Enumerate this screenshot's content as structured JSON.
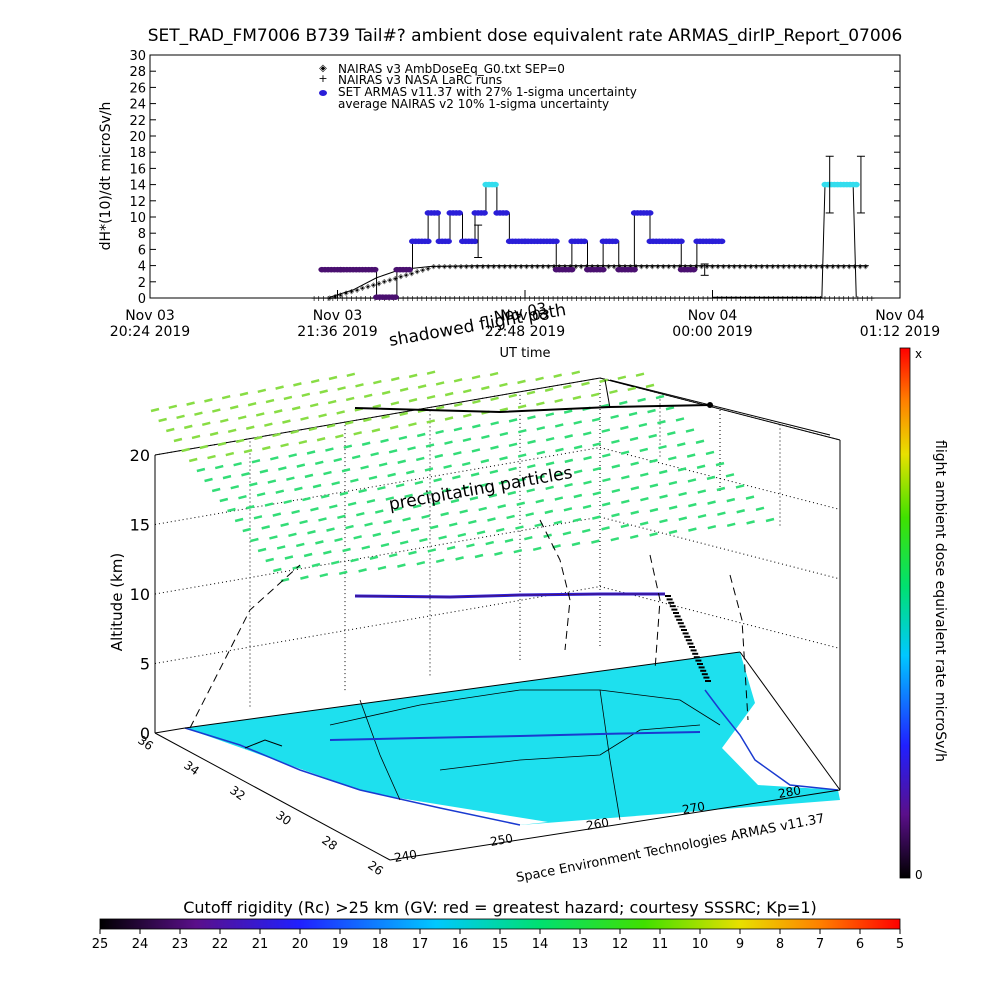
{
  "title": "SET_RAD_FM7006  B739 Tail#? ambient dose equivalent rate ARMAS_dirIP_Report_07006",
  "colors": {
    "nairas_v3": "#000000",
    "armas": "#2a1ed8",
    "nairas_avg_high": "#33ddee",
    "armas_low": "#4a1070",
    "rc_fill": "#1ee0ee",
    "precip": "#33dd77",
    "precip_top": "#88dd44"
  },
  "chart_data": [
    {
      "type": "scatter",
      "title": "SET_RAD_FM7006  B739 Tail#? ambient dose equivalent rate ARMAS_dirIP_Report_07006",
      "xlabel": "UT time",
      "ylabel": "dH*(10)/dt microSv/h",
      "ylim": [
        0,
        30
      ],
      "yticks": [
        0,
        2,
        4,
        6,
        8,
        10,
        12,
        14,
        16,
        18,
        20,
        22,
        24,
        26,
        28,
        30
      ],
      "xlim_hours": [
        20.4,
        25.2
      ],
      "xticks": [
        {
          "line1": "Nov 03",
          "line2": "20:24 2019"
        },
        {
          "line1": "Nov 03",
          "line2": "21:36 2019"
        },
        {
          "line1": "Nov 03",
          "line2": "22:48 2019"
        },
        {
          "line1": "Nov 04",
          "line2": "00:00 2019"
        },
        {
          "line1": "Nov 04",
          "line2": "01:12 2019"
        }
      ],
      "legend": [
        "NAIRAS v3 AmbDoseEq_G0.txt SEP=0",
        "NAIRAS v3 NASA LaRC runs",
        "SET ARMAS v11.37 with 27% 1-sigma uncertainty",
        "average NAIRAS v2 10% 1-sigma uncertainty"
      ],
      "legend_position": "top-center",
      "series": [
        {
          "name": "NAIRAS v3 AmbDoseEq_G0.txt SEP=0",
          "x": [
            21.55,
            21.7,
            21.85,
            22.0,
            22.2,
            22.5,
            22.8,
            23.1,
            23.4,
            23.7,
            24.0,
            24.5,
            25.0
          ],
          "y": [
            0.1,
            1.0,
            2.5,
            3.5,
            3.9,
            4.0,
            4.0,
            4.0,
            4.0,
            4.0,
            4.0,
            4.0,
            4.0
          ]
        },
        {
          "name": "NAIRAS v3 NASA LaRC runs",
          "x": [
            21.55,
            22.0,
            22.5,
            23.0,
            23.5,
            24.0,
            24.5,
            25.0
          ],
          "y": [
            0.1,
            0.1,
            0.1,
            0.1,
            0.1,
            0.1,
            0.1,
            0.1
          ]
        },
        {
          "name": "SET ARMAS v11.37 with 27% 1-sigma uncertainty",
          "x": [
            21.5,
            21.62,
            21.72,
            21.85,
            21.98,
            22.08,
            22.18,
            22.25,
            22.32,
            22.4,
            22.48,
            22.55,
            22.62,
            22.7,
            22.8,
            22.9,
            23.0,
            23.1,
            23.2,
            23.3,
            23.4,
            23.5,
            23.6,
            23.7,
            23.8,
            23.9,
            24.0
          ],
          "y": [
            3.5,
            3.5,
            3.5,
            0.1,
            3.5,
            7.0,
            10.5,
            7.0,
            10.5,
            7.0,
            10.5,
            14.0,
            10.5,
            7.0,
            7.0,
            7.0,
            3.5,
            7.0,
            3.5,
            7.0,
            3.5,
            10.5,
            7.0,
            7.0,
            3.5,
            7.0,
            7.0
          ]
        },
        {
          "name": "average NAIRAS v2 10% 1-sigma uncertainty",
          "x": [
            22.5,
            23.95,
            24.75,
            24.95
          ],
          "y": [
            7.0,
            3.5,
            14.0,
            14.0
          ],
          "err": [
            2.0,
            0.7,
            3.5,
            3.5
          ]
        }
      ]
    },
    {
      "type": "surface3d",
      "zlabel": "Altitude (km)",
      "zticks": [
        0,
        5,
        10,
        15,
        20
      ],
      "lat_ticks": [
        36,
        34,
        32,
        30,
        28,
        26
      ],
      "lon_ticks": [
        240,
        250,
        260,
        270,
        280
      ],
      "annotations": [
        "shadowed flight path",
        "Nov 03",
        "precipitating particles",
        "Space Environment Technologies ARMAS v11.37"
      ],
      "flight_altitude_km": 10
    }
  ],
  "colorbar_right": {
    "label": "flight ambient dose equivalent rate microSv/h",
    "top_label": "x",
    "bottom_label": "0"
  },
  "colorbar_bottom": {
    "label": "Cutoff rigidity (Rc) >25 km (GV: red = greatest hazard; courtesy SSSRC; Kp=1)",
    "ticks": [
      25,
      24,
      23,
      22,
      21,
      20,
      19,
      18,
      17,
      16,
      15,
      14,
      13,
      12,
      11,
      10,
      9,
      8,
      7,
      6,
      5
    ]
  }
}
